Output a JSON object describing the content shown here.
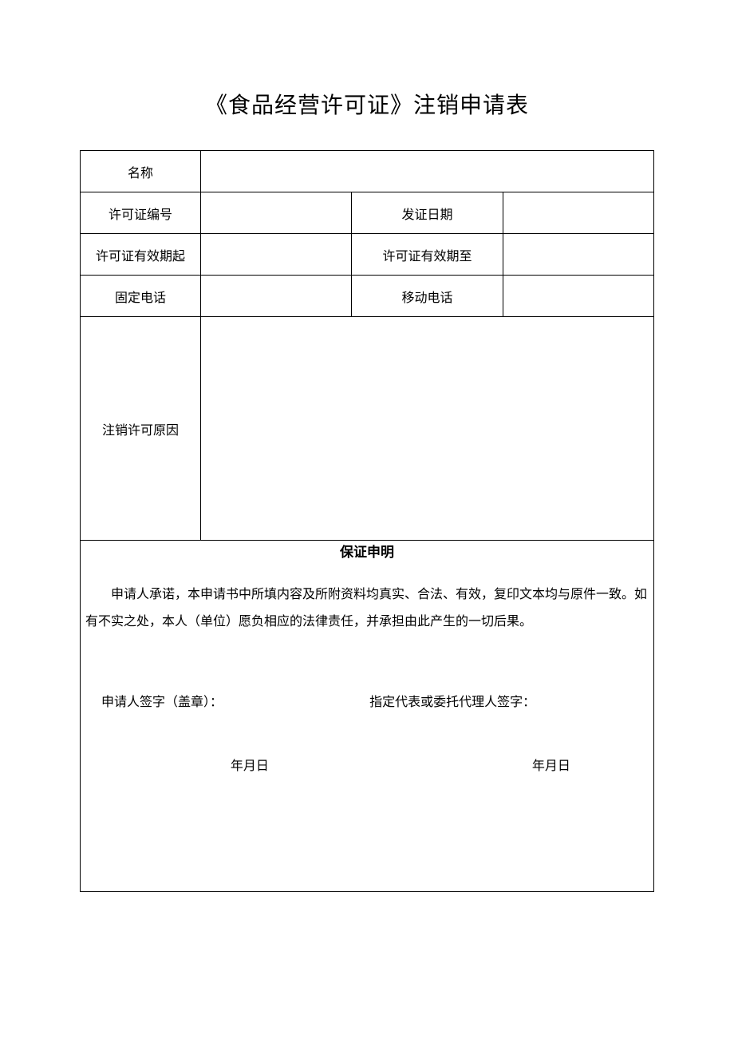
{
  "title": "《食品经营许可证》注销申请表",
  "form": {
    "name_label": "名称",
    "name_value": "",
    "license_no_label": "许可证编号",
    "license_no_value": "",
    "issue_date_label": "发证日期",
    "issue_date_value": "",
    "valid_from_label": "许可证有效期起",
    "valid_from_value": "",
    "valid_to_label": "许可证有效期至",
    "valid_to_value": "",
    "phone_label": "固定电话",
    "phone_value": "",
    "mobile_label": "移动电话",
    "mobile_value": "",
    "reason_label": "注销许可原因",
    "reason_value": ""
  },
  "declaration": {
    "title": "保证申明",
    "text": "申请人承诺，本申请书中所填内容及所附资料均真实、合法、有效，复印文本均与原件一致。如有不实之处，本人（单位）愿负相应的法律责任，并承担由此产生的一切后果。",
    "applicant_sign_label": "申请人签字（盖章）：",
    "agent_sign_label": "指定代表或委托代理人签字：",
    "date_left": "年月日",
    "date_right": "年月日"
  },
  "colors": {
    "background": "#ffffff",
    "text": "#000000",
    "border": "#000000"
  }
}
